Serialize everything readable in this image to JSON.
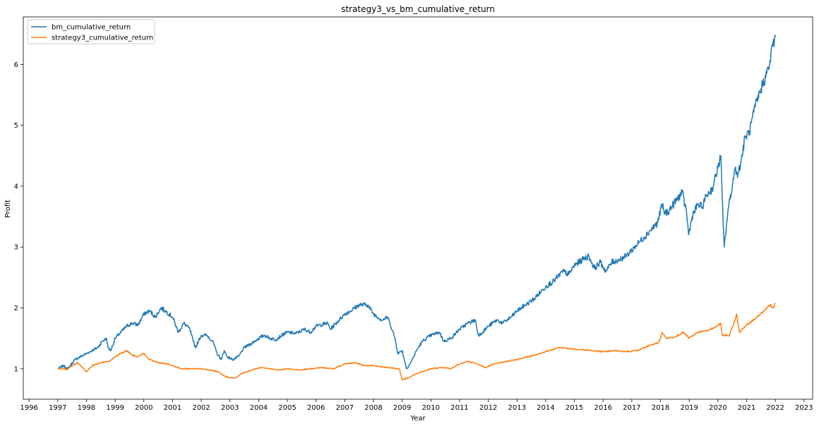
{
  "chart_data": {
    "type": "line",
    "title": "strategy3_vs_bm_cumulative_return",
    "xlabel": "Year",
    "ylabel": "Profit",
    "xlim": [
      1995.8,
      2023.3
    ],
    "ylim": [
      0.5,
      6.78
    ],
    "x_ticks": [
      "1996",
      "1997",
      "1998",
      "1999",
      "2000",
      "2001",
      "2002",
      "2003",
      "2004",
      "2005",
      "2006",
      "2007",
      "2008",
      "2009",
      "2010",
      "2011",
      "2012",
      "2013",
      "2014",
      "2015",
      "2016",
      "2017",
      "2018",
      "2019",
      "2020",
      "2021",
      "2022",
      "2023"
    ],
    "y_ticks": [
      "1",
      "2",
      "3",
      "4",
      "5",
      "6"
    ],
    "grid": false,
    "legend": "top-left",
    "series": [
      {
        "name": "bm_cumulative_return",
        "color": "#1f77b4",
        "points": [
          [
            1997.0,
            1.0
          ],
          [
            1997.2,
            1.05
          ],
          [
            1997.35,
            1.0
          ],
          [
            1997.6,
            1.15
          ],
          [
            1997.8,
            1.2
          ],
          [
            1998.0,
            1.25
          ],
          [
            1998.2,
            1.3
          ],
          [
            1998.4,
            1.35
          ],
          [
            1998.55,
            1.45
          ],
          [
            1998.7,
            1.5
          ],
          [
            1998.75,
            1.35
          ],
          [
            1998.85,
            1.3
          ],
          [
            1999.0,
            1.5
          ],
          [
            1999.2,
            1.6
          ],
          [
            1999.4,
            1.7
          ],
          [
            1999.6,
            1.75
          ],
          [
            1999.8,
            1.72
          ],
          [
            2000.0,
            1.9
          ],
          [
            2000.2,
            1.95
          ],
          [
            2000.4,
            1.85
          ],
          [
            2000.6,
            2.0
          ],
          [
            2000.75,
            1.95
          ],
          [
            2001.0,
            1.85
          ],
          [
            2001.2,
            1.6
          ],
          [
            2001.4,
            1.75
          ],
          [
            2001.6,
            1.65
          ],
          [
            2001.72,
            1.45
          ],
          [
            2001.8,
            1.35
          ],
          [
            2001.9,
            1.45
          ],
          [
            2002.0,
            1.55
          ],
          [
            2002.2,
            1.55
          ],
          [
            2002.4,
            1.45
          ],
          [
            2002.55,
            1.25
          ],
          [
            2002.7,
            1.15
          ],
          [
            2002.8,
            1.3
          ],
          [
            2002.9,
            1.2
          ],
          [
            2003.1,
            1.15
          ],
          [
            2003.3,
            1.2
          ],
          [
            2003.5,
            1.35
          ],
          [
            2003.7,
            1.4
          ],
          [
            2004.0,
            1.5
          ],
          [
            2004.2,
            1.55
          ],
          [
            2004.4,
            1.5
          ],
          [
            2004.6,
            1.48
          ],
          [
            2004.8,
            1.55
          ],
          [
            2005.0,
            1.6
          ],
          [
            2005.3,
            1.58
          ],
          [
            2005.6,
            1.65
          ],
          [
            2005.8,
            1.6
          ],
          [
            2006.0,
            1.7
          ],
          [
            2006.4,
            1.75
          ],
          [
            2006.5,
            1.65
          ],
          [
            2006.8,
            1.8
          ],
          [
            2007.0,
            1.9
          ],
          [
            2007.2,
            1.95
          ],
          [
            2007.5,
            2.05
          ],
          [
            2007.8,
            2.05
          ],
          [
            2008.0,
            1.9
          ],
          [
            2008.3,
            1.8
          ],
          [
            2008.5,
            1.85
          ],
          [
            2008.75,
            1.5
          ],
          [
            2008.85,
            1.25
          ],
          [
            2009.0,
            1.3
          ],
          [
            2009.15,
            1.0
          ],
          [
            2009.3,
            1.1
          ],
          [
            2009.5,
            1.3
          ],
          [
            2009.7,
            1.45
          ],
          [
            2010.0,
            1.55
          ],
          [
            2010.3,
            1.6
          ],
          [
            2010.45,
            1.45
          ],
          [
            2010.7,
            1.5
          ],
          [
            2011.0,
            1.65
          ],
          [
            2011.3,
            1.75
          ],
          [
            2011.55,
            1.8
          ],
          [
            2011.65,
            1.55
          ],
          [
            2011.8,
            1.6
          ],
          [
            2012.0,
            1.7
          ],
          [
            2012.3,
            1.8
          ],
          [
            2012.5,
            1.75
          ],
          [
            2012.8,
            1.85
          ],
          [
            2013.0,
            1.95
          ],
          [
            2013.3,
            2.05
          ],
          [
            2013.6,
            2.15
          ],
          [
            2013.9,
            2.3
          ],
          [
            2014.0,
            2.35
          ],
          [
            2014.3,
            2.45
          ],
          [
            2014.6,
            2.6
          ],
          [
            2014.8,
            2.55
          ],
          [
            2015.0,
            2.7
          ],
          [
            2015.3,
            2.8
          ],
          [
            2015.5,
            2.85
          ],
          [
            2015.7,
            2.65
          ],
          [
            2015.9,
            2.75
          ],
          [
            2016.1,
            2.6
          ],
          [
            2016.3,
            2.75
          ],
          [
            2016.6,
            2.8
          ],
          [
            2016.8,
            2.85
          ],
          [
            2017.0,
            2.95
          ],
          [
            2017.3,
            3.1
          ],
          [
            2017.6,
            3.25
          ],
          [
            2017.9,
            3.4
          ],
          [
            2018.05,
            3.7
          ],
          [
            2018.15,
            3.55
          ],
          [
            2018.3,
            3.6
          ],
          [
            2018.6,
            3.8
          ],
          [
            2018.75,
            3.9
          ],
          [
            2018.9,
            3.6
          ],
          [
            2018.98,
            3.2
          ],
          [
            2019.1,
            3.5
          ],
          [
            2019.3,
            3.7
          ],
          [
            2019.45,
            3.65
          ],
          [
            2019.6,
            3.85
          ],
          [
            2019.8,
            3.95
          ],
          [
            2020.0,
            4.3
          ],
          [
            2020.1,
            4.5
          ],
          [
            2020.18,
            3.4
          ],
          [
            2020.22,
            3.0
          ],
          [
            2020.35,
            3.6
          ],
          [
            2020.5,
            4.0
          ],
          [
            2020.6,
            4.3
          ],
          [
            2020.7,
            4.2
          ],
          [
            2020.8,
            4.4
          ],
          [
            2020.95,
            4.8
          ],
          [
            2021.1,
            4.9
          ],
          [
            2021.3,
            5.3
          ],
          [
            2021.5,
            5.6
          ],
          [
            2021.7,
            5.85
          ],
          [
            2021.8,
            6.0
          ],
          [
            2021.9,
            6.3
          ],
          [
            2021.97,
            6.4
          ],
          [
            2022.0,
            6.45
          ]
        ]
      },
      {
        "name": "strategy3_cumulative_return",
        "color": "#ff7f0e",
        "points": [
          [
            1997.0,
            1.0
          ],
          [
            1997.2,
            1.0
          ],
          [
            1997.3,
            0.98
          ],
          [
            1997.5,
            1.05
          ],
          [
            1997.7,
            1.1
          ],
          [
            1997.9,
            1.0
          ],
          [
            1998.0,
            0.95
          ],
          [
            1998.2,
            1.05
          ],
          [
            1998.5,
            1.1
          ],
          [
            1998.8,
            1.12
          ],
          [
            1999.0,
            1.2
          ],
          [
            1999.2,
            1.25
          ],
          [
            1999.4,
            1.3
          ],
          [
            1999.6,
            1.22
          ],
          [
            1999.8,
            1.2
          ],
          [
            2000.0,
            1.25
          ],
          [
            2000.2,
            1.15
          ],
          [
            2000.5,
            1.1
          ],
          [
            2000.8,
            1.08
          ],
          [
            2001.0,
            1.05
          ],
          [
            2001.3,
            1.0
          ],
          [
            2001.6,
            1.0
          ],
          [
            2002.0,
            1.0
          ],
          [
            2002.3,
            0.98
          ],
          [
            2002.6,
            0.95
          ],
          [
            2002.8,
            0.88
          ],
          [
            2003.0,
            0.85
          ],
          [
            2003.2,
            0.85
          ],
          [
            2003.4,
            0.92
          ],
          [
            2003.6,
            0.95
          ],
          [
            2003.9,
            1.0
          ],
          [
            2004.1,
            1.02
          ],
          [
            2004.4,
            1.0
          ],
          [
            2004.7,
            0.98
          ],
          [
            2005.0,
            1.0
          ],
          [
            2005.4,
            0.98
          ],
          [
            2005.8,
            1.0
          ],
          [
            2006.2,
            1.02
          ],
          [
            2006.6,
            1.0
          ],
          [
            2007.0,
            1.08
          ],
          [
            2007.4,
            1.1
          ],
          [
            2007.7,
            1.05
          ],
          [
            2008.0,
            1.05
          ],
          [
            2008.5,
            1.02
          ],
          [
            2008.9,
            1.0
          ],
          [
            2009.0,
            0.82
          ],
          [
            2009.2,
            0.85
          ],
          [
            2009.4,
            0.9
          ],
          [
            2009.7,
            0.95
          ],
          [
            2010.0,
            1.0
          ],
          [
            2010.4,
            1.02
          ],
          [
            2010.7,
            1.0
          ],
          [
            2011.0,
            1.08
          ],
          [
            2011.3,
            1.12
          ],
          [
            2011.6,
            1.08
          ],
          [
            2011.9,
            1.02
          ],
          [
            2012.2,
            1.08
          ],
          [
            2012.6,
            1.12
          ],
          [
            2013.0,
            1.15
          ],
          [
            2013.4,
            1.2
          ],
          [
            2013.8,
            1.25
          ],
          [
            2014.1,
            1.3
          ],
          [
            2014.5,
            1.35
          ],
          [
            2014.8,
            1.33
          ],
          [
            2015.2,
            1.32
          ],
          [
            2015.6,
            1.3
          ],
          [
            2016.0,
            1.28
          ],
          [
            2016.4,
            1.3
          ],
          [
            2016.8,
            1.28
          ],
          [
            2017.2,
            1.3
          ],
          [
            2017.6,
            1.38
          ],
          [
            2017.9,
            1.42
          ],
          [
            2018.0,
            1.5
          ],
          [
            2018.05,
            1.6
          ],
          [
            2018.2,
            1.5
          ],
          [
            2018.5,
            1.52
          ],
          [
            2018.8,
            1.6
          ],
          [
            2019.0,
            1.5
          ],
          [
            2019.3,
            1.6
          ],
          [
            2019.6,
            1.62
          ],
          [
            2019.9,
            1.68
          ],
          [
            2020.1,
            1.75
          ],
          [
            2020.15,
            1.55
          ],
          [
            2020.4,
            1.55
          ],
          [
            2020.6,
            1.8
          ],
          [
            2020.65,
            1.9
          ],
          [
            2020.75,
            1.6
          ],
          [
            2021.0,
            1.72
          ],
          [
            2021.3,
            1.82
          ],
          [
            2021.6,
            1.95
          ],
          [
            2021.8,
            2.05
          ],
          [
            2021.95,
            2.0
          ],
          [
            2022.0,
            2.08
          ]
        ]
      }
    ]
  }
}
